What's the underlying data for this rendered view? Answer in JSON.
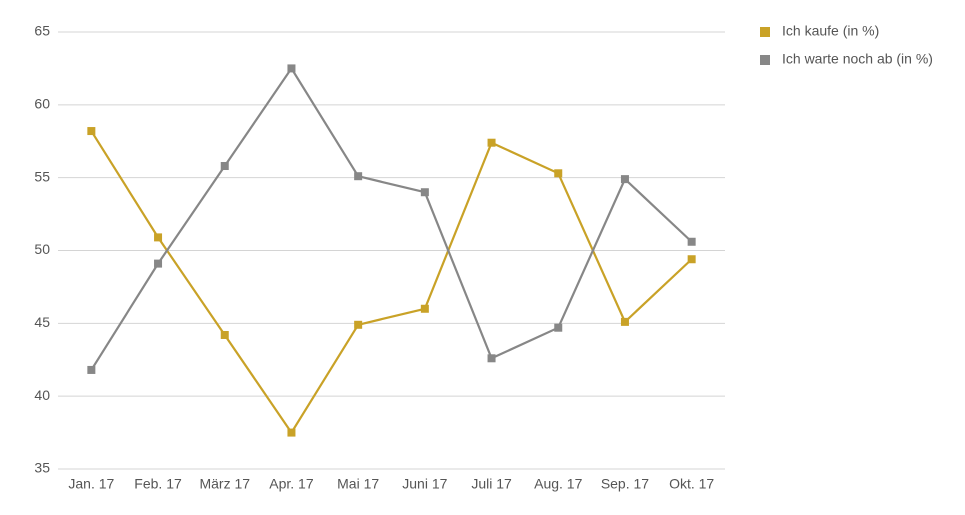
{
  "chart_data": {
    "type": "line",
    "categories": [
      "Jan. 17",
      "Feb. 17",
      "März 17",
      "Apr. 17",
      "Mai 17",
      "Juni 17",
      "Juli 17",
      "Aug. 17",
      "Sep. 17",
      "Okt. 17"
    ],
    "series": [
      {
        "name": "Ich kaufe (in %)",
        "color": "#c9a227",
        "values": [
          58.2,
          50.9,
          44.2,
          37.5,
          44.9,
          46.0,
          57.4,
          55.3,
          45.1,
          49.4
        ]
      },
      {
        "name": "Ich warte noch ab (in %)",
        "color": "#878787",
        "values": [
          41.8,
          49.1,
          55.8,
          62.5,
          55.1,
          54.0,
          42.6,
          44.7,
          54.9,
          50.6
        ]
      }
    ],
    "ylim": [
      35,
      65
    ],
    "yticks": [
      35,
      40,
      45,
      50,
      55,
      60,
      65
    ],
    "grid": true,
    "legend": "right"
  }
}
